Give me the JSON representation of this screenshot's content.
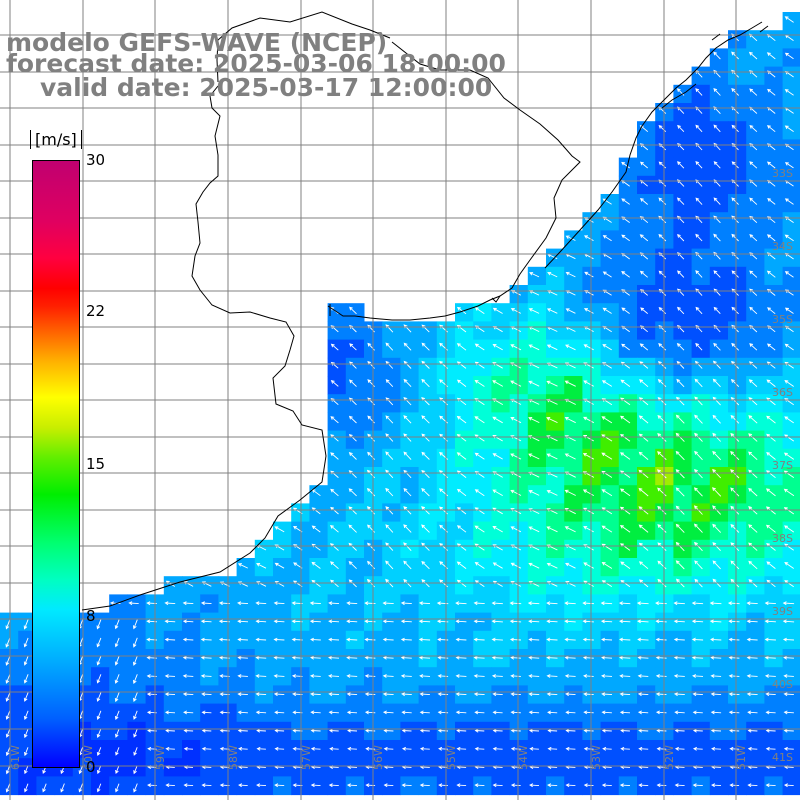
{
  "title": {
    "model": "modelo GEFS-WAVE (NCEP)",
    "forecast": "forecast date: 2025-03-06 18:00:00",
    "valid": "valid date: 2025-03-17 12:00:00"
  },
  "colorbar": {
    "unit": "[m/s]",
    "ticks": [
      "30",
      "22",
      "15",
      "8",
      "0"
    ]
  },
  "lat_labels": [
    "33S",
    "34S",
    "35S",
    "36S",
    "37S",
    "38S",
    "39S",
    "40S",
    "41S"
  ],
  "lon_labels": [
    "61W",
    "60W",
    "59W",
    "58W",
    "57W",
    "56W",
    "55W",
    "54W",
    "53W",
    "52W",
    "51W"
  ],
  "colors": {
    "background": "#ffffff",
    "grid": "#808080",
    "coast": "#000000",
    "arrows": "#ffffff",
    "title_text": "#808080",
    "wind_low": "#0000ff",
    "wind_mid": "#00e8ff",
    "wind_high": "#00ee00",
    "wind_peak": "#b0ee00"
  }
}
